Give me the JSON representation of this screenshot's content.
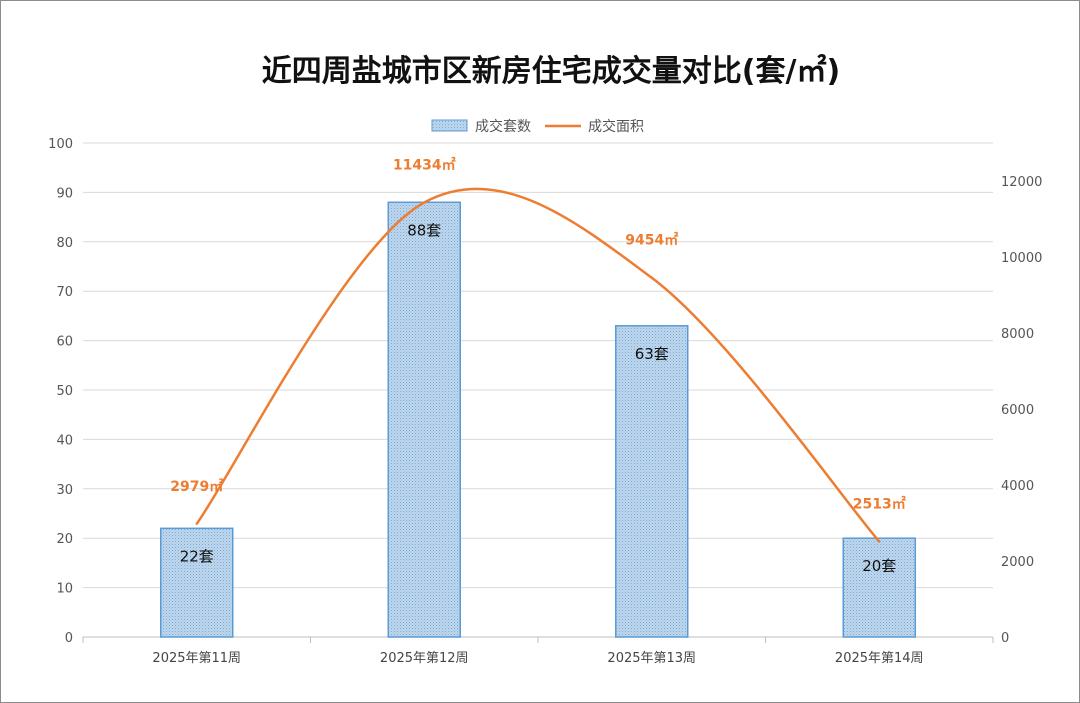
{
  "chart_data": {
    "type": "bar",
    "title": "近四周盐城市区新房住宅成交量对比(套/㎡)",
    "categories": [
      "2025年第11周",
      "2025年第12周",
      "2025年第13周",
      "2025年第14周"
    ],
    "series": [
      {
        "name": "成交套数",
        "type": "bar",
        "axis": "left",
        "values": [
          22,
          88,
          63,
          20
        ],
        "labels": [
          "22套",
          "88套",
          "63套",
          "20套"
        ],
        "color": "#9DC3E6",
        "border_color": "#5B9BD5"
      },
      {
        "name": "成交面积",
        "type": "line",
        "axis": "right",
        "smooth": true,
        "values": [
          2979,
          11434,
          9454,
          2513
        ],
        "labels": [
          "2979㎡",
          "11434㎡",
          "9454㎡",
          "2513㎡"
        ],
        "color": "#ED7D31"
      }
    ],
    "y_left": {
      "min": 0,
      "max": 100,
      "step": 10,
      "ticks": [
        "0",
        "10",
        "20",
        "30",
        "40",
        "50",
        "60",
        "70",
        "80",
        "90",
        "100"
      ]
    },
    "y_right": {
      "min": 0,
      "max": 13000,
      "step": 2000,
      "ticks": [
        "0",
        "2000",
        "4000",
        "6000",
        "8000",
        "10000",
        "12000"
      ]
    },
    "grid": true,
    "legend_position": "top"
  }
}
